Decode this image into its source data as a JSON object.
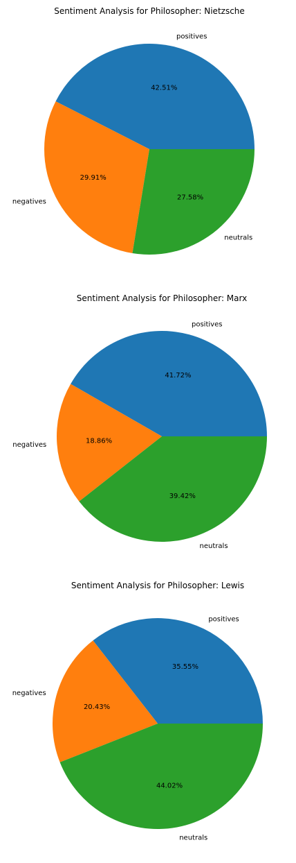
{
  "chart_data": [
    {
      "type": "pie",
      "title": "Sentiment Analysis for  Philosopher: Nietzsche",
      "categories": [
        "positives",
        "negatives",
        "neutrals"
      ],
      "values": [
        42.51,
        29.91,
        27.58
      ],
      "value_labels": [
        "42.51%",
        "29.91%",
        "27.58%"
      ],
      "colors": [
        "#1f77b4",
        "#ff7f0e",
        "#2ca02c"
      ],
      "start_angle_deg": 0,
      "direction": "counterclockwise"
    },
    {
      "type": "pie",
      "title": "Sentiment Analysis for  Philosopher: Marx",
      "categories": [
        "positives",
        "negatives",
        "neutrals"
      ],
      "values": [
        41.72,
        18.86,
        39.42
      ],
      "value_labels": [
        "41.72%",
        "18.86%",
        "39.42%"
      ],
      "colors": [
        "#1f77b4",
        "#ff7f0e",
        "#2ca02c"
      ],
      "start_angle_deg": 0,
      "direction": "counterclockwise"
    },
    {
      "type": "pie",
      "title": "Sentiment Analysis for  Philosopher: Lewis",
      "categories": [
        "positives",
        "negatives",
        "neutrals"
      ],
      "values": [
        35.55,
        20.43,
        44.02
      ],
      "value_labels": [
        "35.55%",
        "20.43%",
        "44.02%"
      ],
      "colors": [
        "#1f77b4",
        "#ff7f0e",
        "#2ca02c"
      ],
      "start_angle_deg": 0,
      "direction": "counterclockwise"
    }
  ]
}
